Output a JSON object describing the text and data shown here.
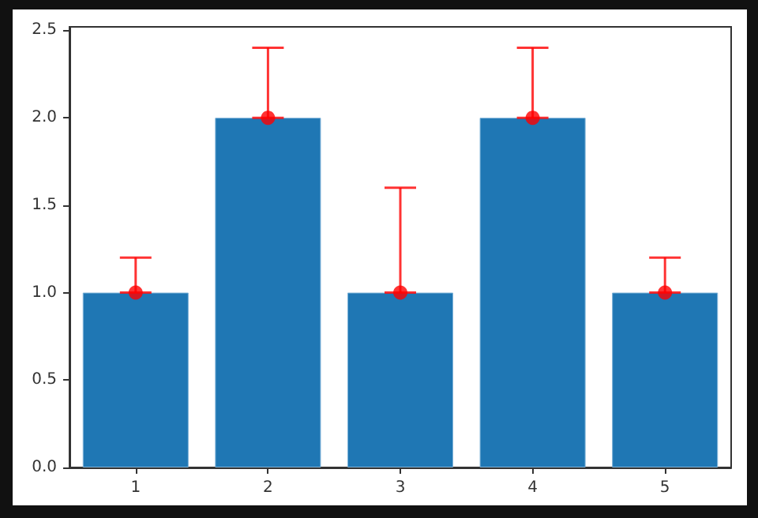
{
  "chart_data": {
    "type": "bar",
    "categories": [
      "1",
      "2",
      "3",
      "4",
      "5"
    ],
    "series": [
      {
        "color": "#1f77b4",
        "values": [
          1,
          2,
          1,
          2,
          1
        ]
      },
      {
        "type": "scatter",
        "color": "#ff0000",
        "x": [
          "1",
          "2",
          "3",
          "4",
          "5"
        ],
        "values": [
          1,
          2,
          1,
          2,
          1
        ],
        "errors": [
          [
            1,
            1.2
          ],
          [
            2,
            2.4
          ],
          [
            1,
            1.6
          ],
          [
            2,
            2.4
          ],
          [
            1,
            1.2
          ]
        ]
      }
    ],
    "ylim": [
      0,
      2.52
    ],
    "yticks": [
      {
        "value": 0,
        "label": "0.0"
      },
      0.5,
      {
        "value": 1,
        "label": "1.0"
      },
      1.5,
      {
        "value": 2,
        "label": "2.0"
      },
      2.5
    ],
    "marker": "circle"
  }
}
